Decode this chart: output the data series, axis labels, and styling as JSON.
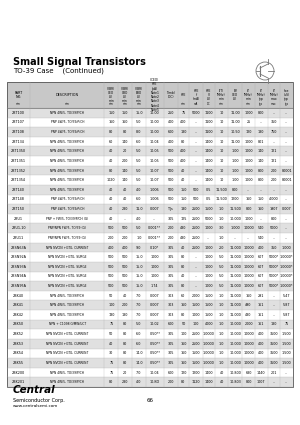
{
  "title": "Small Signal Transistors",
  "subtitle": "TO-39 Case    (Continued)",
  "page_number": "66",
  "bg_color": "#ffffff",
  "table_header_bg": "#cccccc",
  "table_alt_row_bg": "#e8e8e8",
  "table_border_color": "#999999",
  "header_labels": [
    "PART\nNO.",
    "DESCRIPTION",
    "V(BR)\nCEO\n(V)\nmin",
    "V(BR)\nCBO\n(V)\nmin",
    "V(BR)\nEBO\n(V)\nmin",
    "I(CEO)\nhFE\n(pA)\nNote1\nNote2\nNote3\nNote4\nNote5",
    "T(mb)\n(DC)",
    "hFE",
    "hFE\nf\n(mA)",
    "hFE\nV\n(V)",
    "f(T)\n(MHz)\nmin",
    "BV\nCEO\n(V)",
    "fT\n(MHz)\nmin",
    "fT\n(MHz)\ntyp",
    "fT\n(MHz)\nmax",
    "hoe\n(uS)\ntyp"
  ],
  "units_row": [
    "min",
    "min",
    "min",
    "min",
    "min",
    "",
    "",
    "min",
    "mA",
    "DC",
    "min",
    "",
    "min",
    "typ",
    "max",
    "typ"
  ],
  "col_widths_rel": [
    1.1,
    3.5,
    0.65,
    0.65,
    0.65,
    0.85,
    0.65,
    0.55,
    0.65,
    0.55,
    0.65,
    0.65,
    0.6,
    0.6,
    0.6,
    0.6
  ],
  "rows": [
    [
      "2BT100",
      "NPN 4W/5, TO/39/P/CH",
      "150",
      "150",
      "15.0",
      "10.00",
      "250",
      "75",
      "5000",
      "1100",
      "10",
      "11.00",
      "1000",
      "800",
      "...",
      "..."
    ],
    [
      "2BT107",
      "PNP 4W/5, TO/39/P/CH",
      "160",
      "160",
      "5.0",
      "10.00",
      "400",
      "400",
      "...",
      "1100",
      "10",
      "11.00",
      "25",
      "...",
      "350",
      "..."
    ],
    [
      "2BT108",
      "PNP 4W/5, TO/39/P/CH",
      "80",
      "80",
      "8.0",
      "10.00",
      "600",
      "180",
      "...",
      "1100",
      "10",
      "10.50",
      "120",
      "180",
      "750",
      "..."
    ],
    [
      "2BT134",
      "NPN 4W/5, TO/39/P/CH",
      "60",
      "140",
      "6.0",
      "10.04",
      "400",
      "80",
      "...",
      "1400",
      "10",
      "11.00",
      "1000",
      "801",
      "...",
      "..."
    ],
    [
      "2BT1350",
      "NPN 4W/5, TO/39/P/CH",
      "40",
      "20",
      "5.0",
      "10.05",
      "500",
      "400",
      "...",
      "1400",
      "10",
      "1.00",
      "1000",
      "140",
      "121",
      "..."
    ],
    [
      "2BT1351",
      "NPN 4W/5, TO/39/P/CH",
      "40",
      "200",
      "5.0",
      "10.05",
      "500",
      "400",
      "...",
      "1400",
      "10",
      "1.00",
      "1000",
      "140",
      "121",
      "..."
    ],
    [
      "2BT1352",
      "NPN 4W/5, TO/39/P/CH",
      "80",
      "140",
      "5.0",
      "10.07",
      "500",
      "40",
      "...",
      "1400",
      "10",
      "1.00",
      "1000",
      "800",
      "200",
      "80001"
    ],
    [
      "2BT1354",
      "NPN 4W/5, TO/39/P/CH",
      "1020",
      "140",
      "5.0",
      "10.07",
      "500",
      "40",
      "...",
      "1400",
      "10",
      "1.00",
      "1000",
      "800",
      "200",
      "80001"
    ],
    [
      "2BT140",
      "NPN 4W/5, TO/39/P/CH",
      "40",
      "40",
      "4.0",
      "1.006",
      "500",
      "150",
      "500",
      "0.5",
      "11.500",
      "800",
      "...",
      "...",
      "...",
      "..."
    ],
    [
      "2BT148",
      "PNP 4W/5, TO/39/P/CH",
      "40",
      "40",
      "6.0",
      "1.006",
      "500",
      "150",
      "500",
      "0.5",
      "11.500",
      "1200",
      "160",
      "150",
      "4.000",
      "..."
    ],
    [
      "2BT150",
      "PNP 4W/5, TO/39/P/CH",
      "40",
      "280",
      "11.0",
      "0.007",
      "TJs",
      "180",
      "2500",
      "1500",
      "1.0",
      "11.500",
      "800",
      "160",
      "1907",
      "0.007"
    ],
    [
      "2BU1",
      "PNP + FW/5, TO/39/P/CH (G)",
      "40",
      "...",
      "4.0",
      "...",
      "305",
      "125",
      "2500",
      "5000",
      "1.0",
      "10.000",
      "1000",
      "...",
      "800",
      "..."
    ],
    [
      "2BU1-10",
      "PNP/NPN FW/5, TO/39 (G)",
      "500",
      "500",
      "5.0",
      "0.001**",
      "200",
      "480",
      "2500",
      "1000",
      "3.0",
      "1.000",
      "10000",
      "540",
      "5000",
      "..."
    ],
    [
      "2BU11",
      "PNP/NPN FW/5, TO/39 (G)",
      "200",
      "200",
      "1.0",
      "0.001**",
      "200",
      "480",
      "2500",
      "...",
      "1.0",
      "...",
      "...",
      "540",
      "...",
      "..."
    ],
    [
      "2BSN63A",
      "NPN NVCIN +GTG, CURRENT",
      "400",
      "400",
      "9.0",
      "0.10*",
      "305",
      "40",
      "2500",
      "1000",
      "2.0",
      "11.000",
      "10000",
      "400",
      "350",
      "1.000"
    ],
    [
      "2BSN92A",
      "NPN NVCIN +GTG, SURGE",
      "500",
      "500",
      "15.0",
      "1000",
      "305",
      "80",
      "...",
      "1000",
      "5.0",
      "11.000",
      "10000",
      "607",
      "5000*",
      "1.0000*"
    ],
    [
      "2BSN93A",
      "NPN NVCIN +GTG, SURGE",
      "500",
      "500",
      "15.0",
      "1000",
      "305",
      "80",
      "...",
      "1000",
      "5.0",
      "11.000",
      "10000",
      "607",
      "5000*",
      "1.0000*"
    ],
    [
      "2BSN94A",
      "NPN NVCIN +GTG, SURGE",
      "500",
      "500",
      "15.0",
      "1000",
      "305",
      "40",
      "...",
      "1000",
      "5.0",
      "11.000",
      "10000",
      "607",
      "5000*",
      "1.0000*"
    ],
    [
      "2BSN95A",
      "NPN NVCIN +GTG, SURGE",
      "500",
      "500",
      "15.0",
      "1.74",
      "305",
      "80",
      "...",
      "1000",
      "5.0",
      "11.000",
      "10000",
      "607",
      "5000*",
      "1.0000*"
    ],
    [
      "2BK40",
      "NPN 4W/5, TO/39/P/CH",
      "50",
      "40",
      "7.0",
      "0.007",
      "303",
      "60",
      "2000",
      "1500",
      "1.0",
      "11.000",
      "160",
      "291",
      "...",
      "5.47"
    ],
    [
      "2BK41",
      "NPN 4W/5, TO/39/P/CH",
      "100",
      "200",
      "7.0",
      "0.007",
      "303",
      "160",
      "1500",
      "1500",
      "1.0",
      "11.000",
      "490",
      "161",
      "...",
      "5.87"
    ],
    [
      "2BK42",
      "NPN 4W/5, TO/39/P/CH",
      "130",
      "180",
      "7.0",
      "0.007",
      "303",
      "80",
      "1000",
      "1500",
      "1.0",
      "11.000",
      "480",
      "161",
      "...",
      "5.87"
    ],
    [
      "2BK50",
      "NPN + C1098 G/MW/UCT",
      "75",
      "80",
      "5.0",
      "10.02",
      "600",
      "50",
      "100",
      "4000",
      "1.0",
      "10.000",
      "2000",
      "161",
      "180",
      "75"
    ],
    [
      "2BK52",
      "NPN NVCIN +GTG, CURRENT",
      "50",
      "80",
      "6.0",
      "0.50**",
      "305",
      "100",
      "2500",
      "1.0000",
      "1.0",
      "10.000",
      "10000",
      "400",
      "3500",
      "1.500"
    ],
    [
      "2BK53",
      "NPN NVCIN +GTG, CURRENT",
      "40",
      "80",
      "6.0",
      "0.50**",
      "305",
      "160",
      "2500",
      "1.0000",
      "1.0",
      "10.000",
      "10000",
      "400",
      "3500",
      "1.500"
    ],
    [
      "2BK54",
      "NPN NVCIN +GTG, CURRENT",
      "30",
      "80",
      "14.0",
      "0.50**",
      "305",
      "160",
      "1500",
      "1.0000",
      "1.0",
      "10.000",
      "10000",
      "400",
      "3500",
      "1.500"
    ],
    [
      "2BK55",
      "NPN NVCIN +GTG, CURRENT",
      "75",
      "80",
      "14.0",
      "0.50**",
      "305",
      "160",
      "1500",
      "1.0000",
      "1.0",
      "10.000",
      "10000",
      "400",
      "3500",
      "1.500"
    ],
    [
      "2BK200",
      "NPN 4W/5, TO/39/P/CH",
      "75",
      "20",
      "7.0",
      "10.04",
      "600",
      "120",
      "1200",
      "1400",
      "40",
      "10.800",
      "680",
      "1440",
      "201",
      "..."
    ],
    [
      "2BK201",
      "NPN 4W/5, TO/39/P/CH",
      "80",
      "280",
      "4.0",
      "10.KO",
      "200",
      "80",
      "1120",
      "1400",
      "40",
      "10.803",
      "800",
      "1007",
      "...",
      "..."
    ]
  ]
}
